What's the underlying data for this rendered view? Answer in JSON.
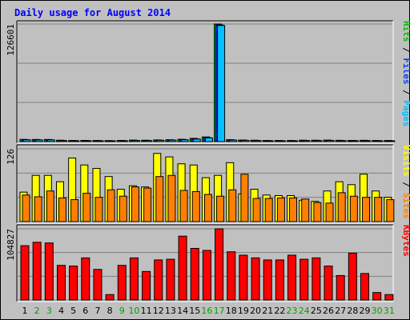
{
  "colors": {
    "background": "#c0c0c0",
    "plot_background": "#c0c0c0",
    "grid": "#808080",
    "title": "#0000ff",
    "pages": "#00c0ff",
    "files": "#0040ff",
    "hits": "#00c000",
    "sites": "#ff8000",
    "visits": "#ffff00",
    "kbytes": "#ff0000",
    "weekend_label": "#00a000",
    "weekday_label": "#000000"
  },
  "chart_data": {
    "type": "bar",
    "title": "Daily usage for August 2014",
    "categories": [
      "1",
      "2",
      "3",
      "4",
      "5",
      "6",
      "7",
      "8",
      "9",
      "10",
      "11",
      "12",
      "13",
      "14",
      "15",
      "16",
      "17",
      "18",
      "19",
      "20",
      "21",
      "22",
      "23",
      "24",
      "25",
      "26",
      "27",
      "28",
      "29",
      "30",
      "31"
    ],
    "weekend_days": [
      "2",
      "3",
      "9",
      "10",
      "16",
      "17",
      "23",
      "24",
      "30",
      "31"
    ],
    "panels": [
      {
        "id": "hits",
        "max_label": "126601",
        "legend": [
          {
            "text": "Pages",
            "color": "#00c0ff"
          },
          {
            "text": "Files",
            "color": "#0040ff"
          },
          {
            "text": "Hits",
            "color": "#00c000"
          }
        ],
        "separator": " / ",
        "ylim": [
          0,
          126601
        ],
        "grid": true,
        "series": [
          {
            "name": "Hits",
            "color": "#00c000",
            "values": [
              2400,
              2300,
              2300,
              1500,
              1200,
              1300,
              1200,
              1100,
              1300,
              1600,
              1500,
              1800,
              2000,
              2500,
              3500,
              5000,
              126601,
              2100,
              1700,
              1500,
              1200,
              1200,
              1200,
              1500,
              1500,
              1600,
              1400,
              1300,
              1400,
              1200,
              1200
            ]
          },
          {
            "name": "Files",
            "color": "#0040ff",
            "values": [
              2100,
              2000,
              2000,
              1300,
              1000,
              1100,
              1000,
              900,
              1100,
              1400,
              1300,
              1600,
              1800,
              2200,
              3000,
              4400,
              125600,
              1800,
              1500,
              1300,
              1000,
              1000,
              1000,
              1300,
              1300,
              1400,
              1200,
              1100,
              1200,
              1000,
              1000
            ]
          },
          {
            "name": "Pages",
            "color": "#00c0ff",
            "values": [
              1900,
              1800,
              1800,
              1100,
              900,
              950,
              900,
              800,
              950,
              1200,
              1100,
              1400,
              1600,
              2000,
              2700,
              4000,
              125000,
              1600,
              1300,
              1100,
              900,
              900,
              900,
              1100,
              1100,
              1200,
              1000,
              950,
              1000,
              900,
              900
            ]
          }
        ]
      },
      {
        "id": "visits",
        "max_label": "126",
        "legend": [
          {
            "text": "Sites",
            "color": "#ff8000"
          },
          {
            "text": "Visits",
            "color": "#ffff00"
          }
        ],
        "separator": " / ",
        "ylim": [
          0,
          126
        ],
        "grid": true,
        "series": [
          {
            "name": "Visits",
            "color": "#ffff00",
            "values": [
              51,
              80,
              80,
              69,
              110,
              98,
              92,
              78,
              56,
              62,
              60,
              118,
              112,
              100,
              98,
              76,
              80,
              102,
              48,
              56,
              46,
              45,
              45,
              37,
              35,
              53,
              69,
              64,
              82,
              53,
              42
            ]
          },
          {
            "name": "Sites",
            "color": "#ff8000",
            "values": [
              46,
              43,
              53,
              41,
              38,
              49,
              42,
              55,
              44,
              60,
              58,
              78,
              80,
              54,
              52,
              47,
              44,
              55,
              82,
              40,
              40,
              41,
              41,
              39,
              33,
              32,
              50,
              44,
              42,
              42,
              38
            ]
          }
        ]
      },
      {
        "id": "kbytes",
        "max_label": "104827",
        "legend": [
          {
            "text": "KBytes",
            "color": "#ff0000"
          }
        ],
        "separator": "",
        "ylim": [
          0,
          104827
        ],
        "grid": true,
        "series": [
          {
            "name": "KBytes",
            "color": "#ff0000",
            "values": [
              80000,
              85000,
              84000,
              51000,
              50000,
              62000,
              45000,
              8000,
              51000,
              62000,
              42000,
              59000,
              60000,
              94000,
              76000,
              73000,
              104827,
              71000,
              66000,
              62000,
              59000,
              59000,
              66000,
              60000,
              62000,
              50000,
              36000,
              69000,
              39000,
              11000,
              8000
            ]
          }
        ]
      }
    ]
  }
}
